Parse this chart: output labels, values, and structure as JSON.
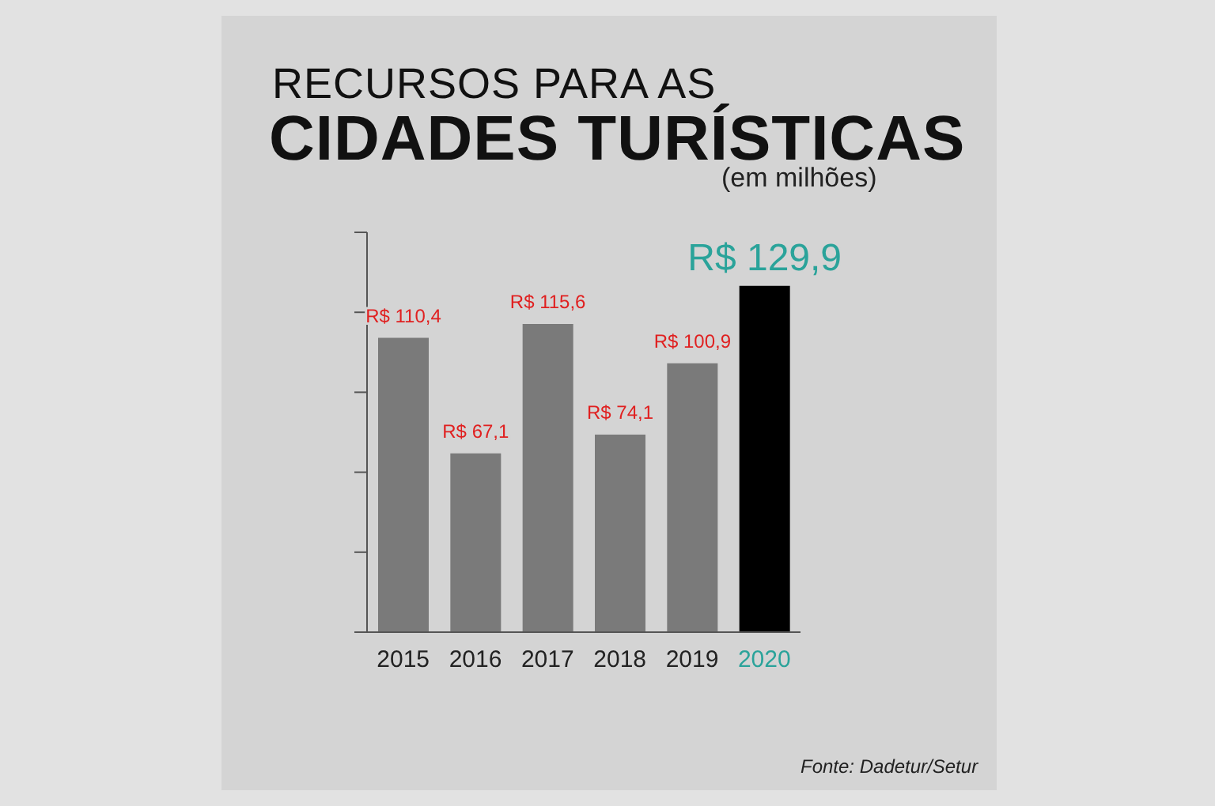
{
  "chart_data": {
    "type": "bar",
    "title": "RECURSOS PARA AS",
    "subtitle": "CIDADES TURÍSTICAS",
    "annotations": [
      "(em milhões)",
      "Fonte: Dadetur/Setur"
    ],
    "categories": [
      "2015",
      "2016",
      "2017",
      "2018",
      "2019",
      "2020"
    ],
    "values": [
      110.4,
      67.1,
      115.6,
      74.1,
      100.9,
      129.9
    ],
    "colors": [
      "#7a7a7a",
      "#7a7a7a",
      "#7a7a7a",
      "#7a7a7a",
      "#7a7a7a",
      "#000000"
    ],
    "value_labels": [
      "R$ 110,4",
      "R$ 67,1",
      "R$ 115,6",
      "R$ 74,1",
      "R$ 100,9",
      "R$ 129,9"
    ],
    "ylim": [
      0,
      150
    ],
    "yticks": [
      {
        "value": 0,
        "label": null
      },
      {
        "value": 30,
        "label": null
      },
      {
        "value": 60,
        "label": null
      },
      {
        "value": 90,
        "label": null
      },
      {
        "value": 120,
        "label": null
      },
      {
        "value": 150,
        "label": null
      }
    ],
    "tick_labels": "x",
    "grid": false
  }
}
